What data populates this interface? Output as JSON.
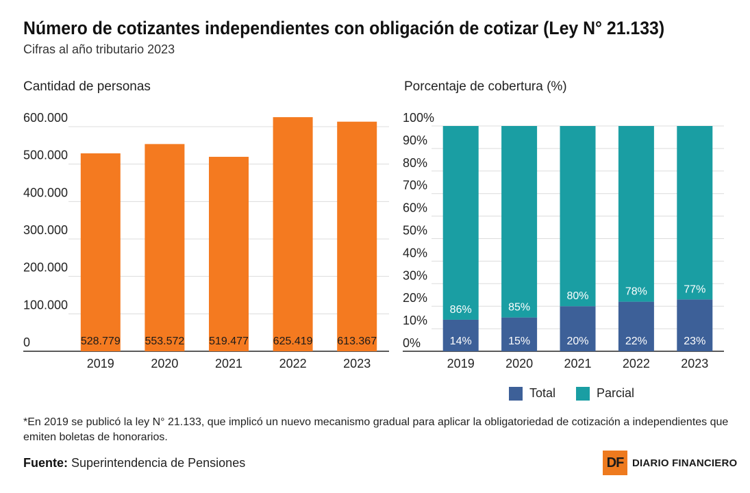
{
  "header": {
    "title": "Número de cotizantes independientes con obligación de cotizar (Ley N° 21.133)",
    "subtitle": "Cifras al año tributario 2023"
  },
  "chart_data": [
    {
      "type": "bar",
      "title": "Cantidad de personas",
      "categories": [
        "2019",
        "2020",
        "2021",
        "2022",
        "2023"
      ],
      "values": [
        528779,
        553572,
        519477,
        625419,
        613367
      ],
      "value_labels": [
        "528.779",
        "553.572",
        "519.477",
        "625.419",
        "613.367"
      ],
      "y_ticks": [
        "0",
        "100.000",
        "200.000",
        "300.000",
        "400.000",
        "500.000",
        "600.000"
      ],
      "ylim": [
        0,
        600000
      ],
      "grid": true,
      "color": "#f47a20"
    },
    {
      "type": "bar",
      "stacked": true,
      "title": "Porcentaje de cobertura (%)",
      "categories": [
        "2019",
        "2020",
        "2021",
        "2022",
        "2023"
      ],
      "series": [
        {
          "name": "Total",
          "values": [
            14,
            15,
            20,
            22,
            23
          ],
          "labels": [
            "14%",
            "15%",
            "20%",
            "22%",
            "23%"
          ],
          "color": "#3d6098"
        },
        {
          "name": "Parcial",
          "values": [
            86,
            85,
            80,
            78,
            77
          ],
          "labels": [
            "86%",
            "85%",
            "80%",
            "78%",
            "77%"
          ],
          "color": "#1a9ea3"
        }
      ],
      "y_ticks": [
        "0%",
        "10%",
        "20%",
        "30%",
        "40%",
        "50%",
        "60%",
        "70%",
        "80%",
        "90%",
        "100%"
      ],
      "ylim": [
        0,
        100
      ],
      "grid": true,
      "legend_position": "bottom"
    }
  ],
  "footer": {
    "note": "*En 2019 se publicó la ley N° 21.133, que implicó un nuevo mecanismo gradual para aplicar la obligatoriedad de cotización a independientes que emiten boletas de honorarios.",
    "source_label": "Fuente:",
    "source_text": "Superintendencia de Pensiones",
    "logo_mark": "DF",
    "logo_name": "DIARIO FINANCIERO"
  }
}
